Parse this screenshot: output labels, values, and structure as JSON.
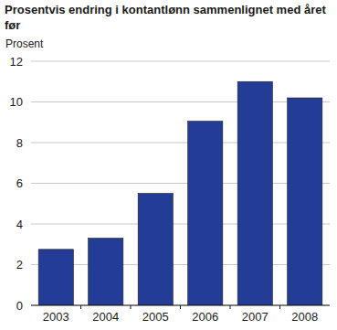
{
  "chart_data": {
    "type": "bar",
    "title": "Prosentvis endring i kontantlønn sammenlignet med året før",
    "y_label": "Prosent",
    "categories": [
      "2003",
      "2004",
      "2005",
      "2006",
      "2007",
      "2008"
    ],
    "values": [
      2.75,
      3.3,
      5.5,
      9.05,
      11.0,
      10.2
    ],
    "color": "#233c96",
    "ylim": [
      0,
      12
    ],
    "yticks": [
      0,
      2,
      4,
      6,
      8,
      10,
      12
    ],
    "grid": true
  }
}
